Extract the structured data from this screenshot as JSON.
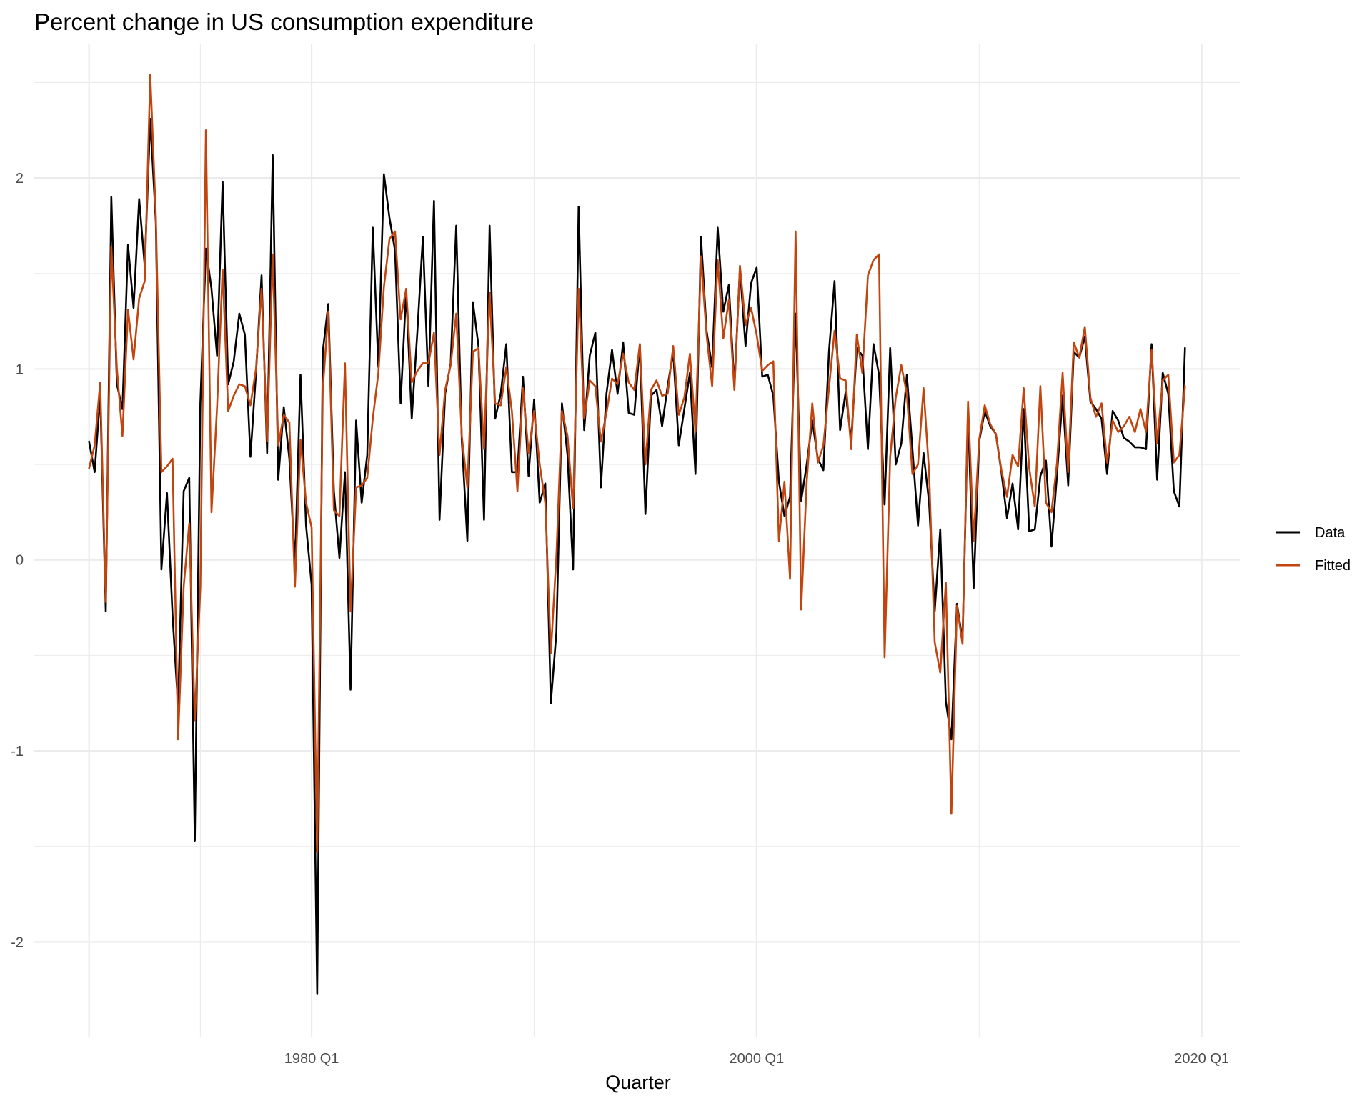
{
  "chart_data": {
    "type": "line",
    "title": "Percent change in US consumption expenditure",
    "xlabel": "Quarter",
    "ylabel": "",
    "x_start": "1970 Q1",
    "x_end": "2019 Q2",
    "xticks": [
      1980,
      2000,
      2020
    ],
    "xtick_labels": [
      "1980 Q1",
      "2000 Q1",
      "2020 Q1"
    ],
    "ylim": [
      -2.5,
      2.7
    ],
    "yticks": [
      -2,
      -1,
      0,
      1,
      2
    ],
    "ytick_labels": [
      "-2",
      "-1",
      "0",
      "1",
      "2"
    ],
    "grid": true,
    "legend_position": "right",
    "series": [
      {
        "name": "Data",
        "color": "#000000",
        "values": [
          0.62,
          0.46,
          0.87,
          -0.27,
          1.9,
          0.92,
          0.79,
          1.65,
          1.32,
          1.89,
          1.54,
          2.31,
          1.77,
          -0.05,
          0.35,
          -0.29,
          -0.77,
          0.36,
          0.43,
          -1.47,
          0.82,
          1.63,
          1.42,
          1.07,
          1.98,
          0.92,
          1.04,
          1.29,
          1.18,
          0.54,
          0.98,
          1.49,
          0.56,
          2.12,
          0.42,
          0.8,
          0.53,
          -0.03,
          0.97,
          0.18,
          -0.13,
          -2.27,
          1.09,
          1.34,
          0.36,
          0.01,
          0.46,
          -0.68,
          0.73,
          0.3,
          0.55,
          1.74,
          1.01,
          2.02,
          1.79,
          1.62,
          0.82,
          1.41,
          0.74,
          1.19,
          1.69,
          0.91,
          1.88,
          0.21,
          0.87,
          1.03,
          1.75,
          0.63,
          0.1,
          1.35,
          1.12,
          0.21,
          1.75,
          0.74,
          0.87,
          1.13,
          0.46,
          0.46,
          0.96,
          0.44,
          0.84,
          0.3,
          0.4,
          -0.75,
          -0.38,
          0.82,
          0.55,
          -0.05,
          1.85,
          0.68,
          1.07,
          1.19,
          0.38,
          0.87,
          1.1,
          0.87,
          1.14,
          0.77,
          0.76,
          1.13,
          0.24,
          0.86,
          0.89,
          0.7,
          0.91,
          1.09,
          0.6,
          0.79,
          0.98,
          0.45,
          1.69,
          1.2,
          1.01,
          1.74,
          1.3,
          1.44,
          0.91,
          1.53,
          1.12,
          1.45,
          1.53,
          0.96,
          0.97,
          0.86,
          0.41,
          0.23,
          0.33,
          1.29,
          0.31,
          0.5,
          0.73,
          0.53,
          0.47,
          1.09,
          1.46,
          0.68,
          0.88,
          0.62,
          1.11,
          1.07,
          0.58,
          1.13,
          0.97,
          0.29,
          1.11,
          0.5,
          0.61,
          0.97,
          0.58,
          0.18,
          0.56,
          0.3,
          -0.27,
          0.16,
          -0.74,
          -0.94,
          -0.23,
          -0.42,
          0.78,
          -0.15,
          0.62,
          0.78,
          0.7,
          0.66,
          0.46,
          0.22,
          0.4,
          0.16,
          0.79,
          0.15,
          0.16,
          0.44,
          0.52,
          0.07,
          0.45,
          0.86,
          0.39,
          1.09,
          1.06,
          1.17,
          0.83,
          0.79,
          0.74,
          0.45,
          0.78,
          0.73,
          0.64,
          0.62,
          0.59,
          0.59,
          0.58,
          1.13,
          0.42,
          0.98,
          0.87,
          0.36,
          0.28,
          1.11
        ]
      },
      {
        "name": "Fitted",
        "color": "#c2440e",
        "values": [
          0.48,
          0.6,
          0.93,
          -0.22,
          1.64,
          1.0,
          0.65,
          1.31,
          1.05,
          1.37,
          1.46,
          2.54,
          1.8,
          0.46,
          0.49,
          0.53,
          -0.94,
          -0.14,
          0.19,
          -0.84,
          -0.14,
          2.25,
          0.25,
          0.8,
          1.52,
          0.78,
          0.86,
          0.92,
          0.91,
          0.81,
          1.0,
          1.42,
          0.62,
          1.6,
          0.6,
          0.76,
          0.72,
          -0.14,
          0.63,
          0.3,
          0.17,
          -1.53,
          0.89,
          1.3,
          0.26,
          0.23,
          1.03,
          -0.27,
          0.38,
          0.39,
          0.43,
          0.74,
          0.98,
          1.43,
          1.68,
          1.72,
          1.26,
          1.42,
          0.93,
          0.99,
          1.03,
          1.03,
          1.19,
          0.55,
          0.89,
          1.02,
          1.29,
          0.65,
          0.38,
          1.09,
          1.11,
          0.58,
          1.4,
          0.82,
          0.81,
          1.01,
          0.78,
          0.36,
          0.9,
          0.56,
          0.78,
          0.5,
          0.3,
          -0.49,
          0.02,
          0.78,
          0.65,
          0.27,
          1.42,
          0.74,
          0.94,
          0.91,
          0.62,
          0.77,
          0.95,
          0.92,
          1.08,
          0.93,
          0.89,
          1.13,
          0.5,
          0.89,
          0.94,
          0.86,
          0.87,
          1.12,
          0.76,
          0.85,
          1.08,
          0.67,
          1.59,
          1.18,
          0.91,
          1.57,
          1.16,
          1.36,
          0.89,
          1.54,
          1.23,
          1.32,
          1.18,
          0.99,
          1.02,
          1.04,
          0.1,
          0.41,
          -0.1,
          1.72,
          -0.26,
          0.41,
          0.82,
          0.51,
          0.6,
          0.9,
          1.2,
          0.95,
          0.94,
          0.58,
          1.18,
          0.98,
          1.49,
          1.57,
          1.6,
          -0.51,
          0.54,
          0.85,
          1.02,
          0.87,
          0.45,
          0.5,
          0.9,
          0.46,
          -0.43,
          -0.59,
          -0.12,
          -1.33,
          -0.24,
          -0.44,
          0.83,
          0.1,
          0.63,
          0.81,
          0.71,
          0.66,
          0.47,
          0.33,
          0.55,
          0.49,
          0.9,
          0.48,
          0.28,
          0.91,
          0.3,
          0.25,
          0.51,
          0.98,
          0.46,
          1.14,
          1.06,
          1.22,
          0.85,
          0.75,
          0.82,
          0.51,
          0.73,
          0.67,
          0.7,
          0.75,
          0.67,
          0.79,
          0.67,
          1.1,
          0.61,
          0.94,
          0.97,
          0.51,
          0.55,
          0.91
        ]
      }
    ]
  }
}
